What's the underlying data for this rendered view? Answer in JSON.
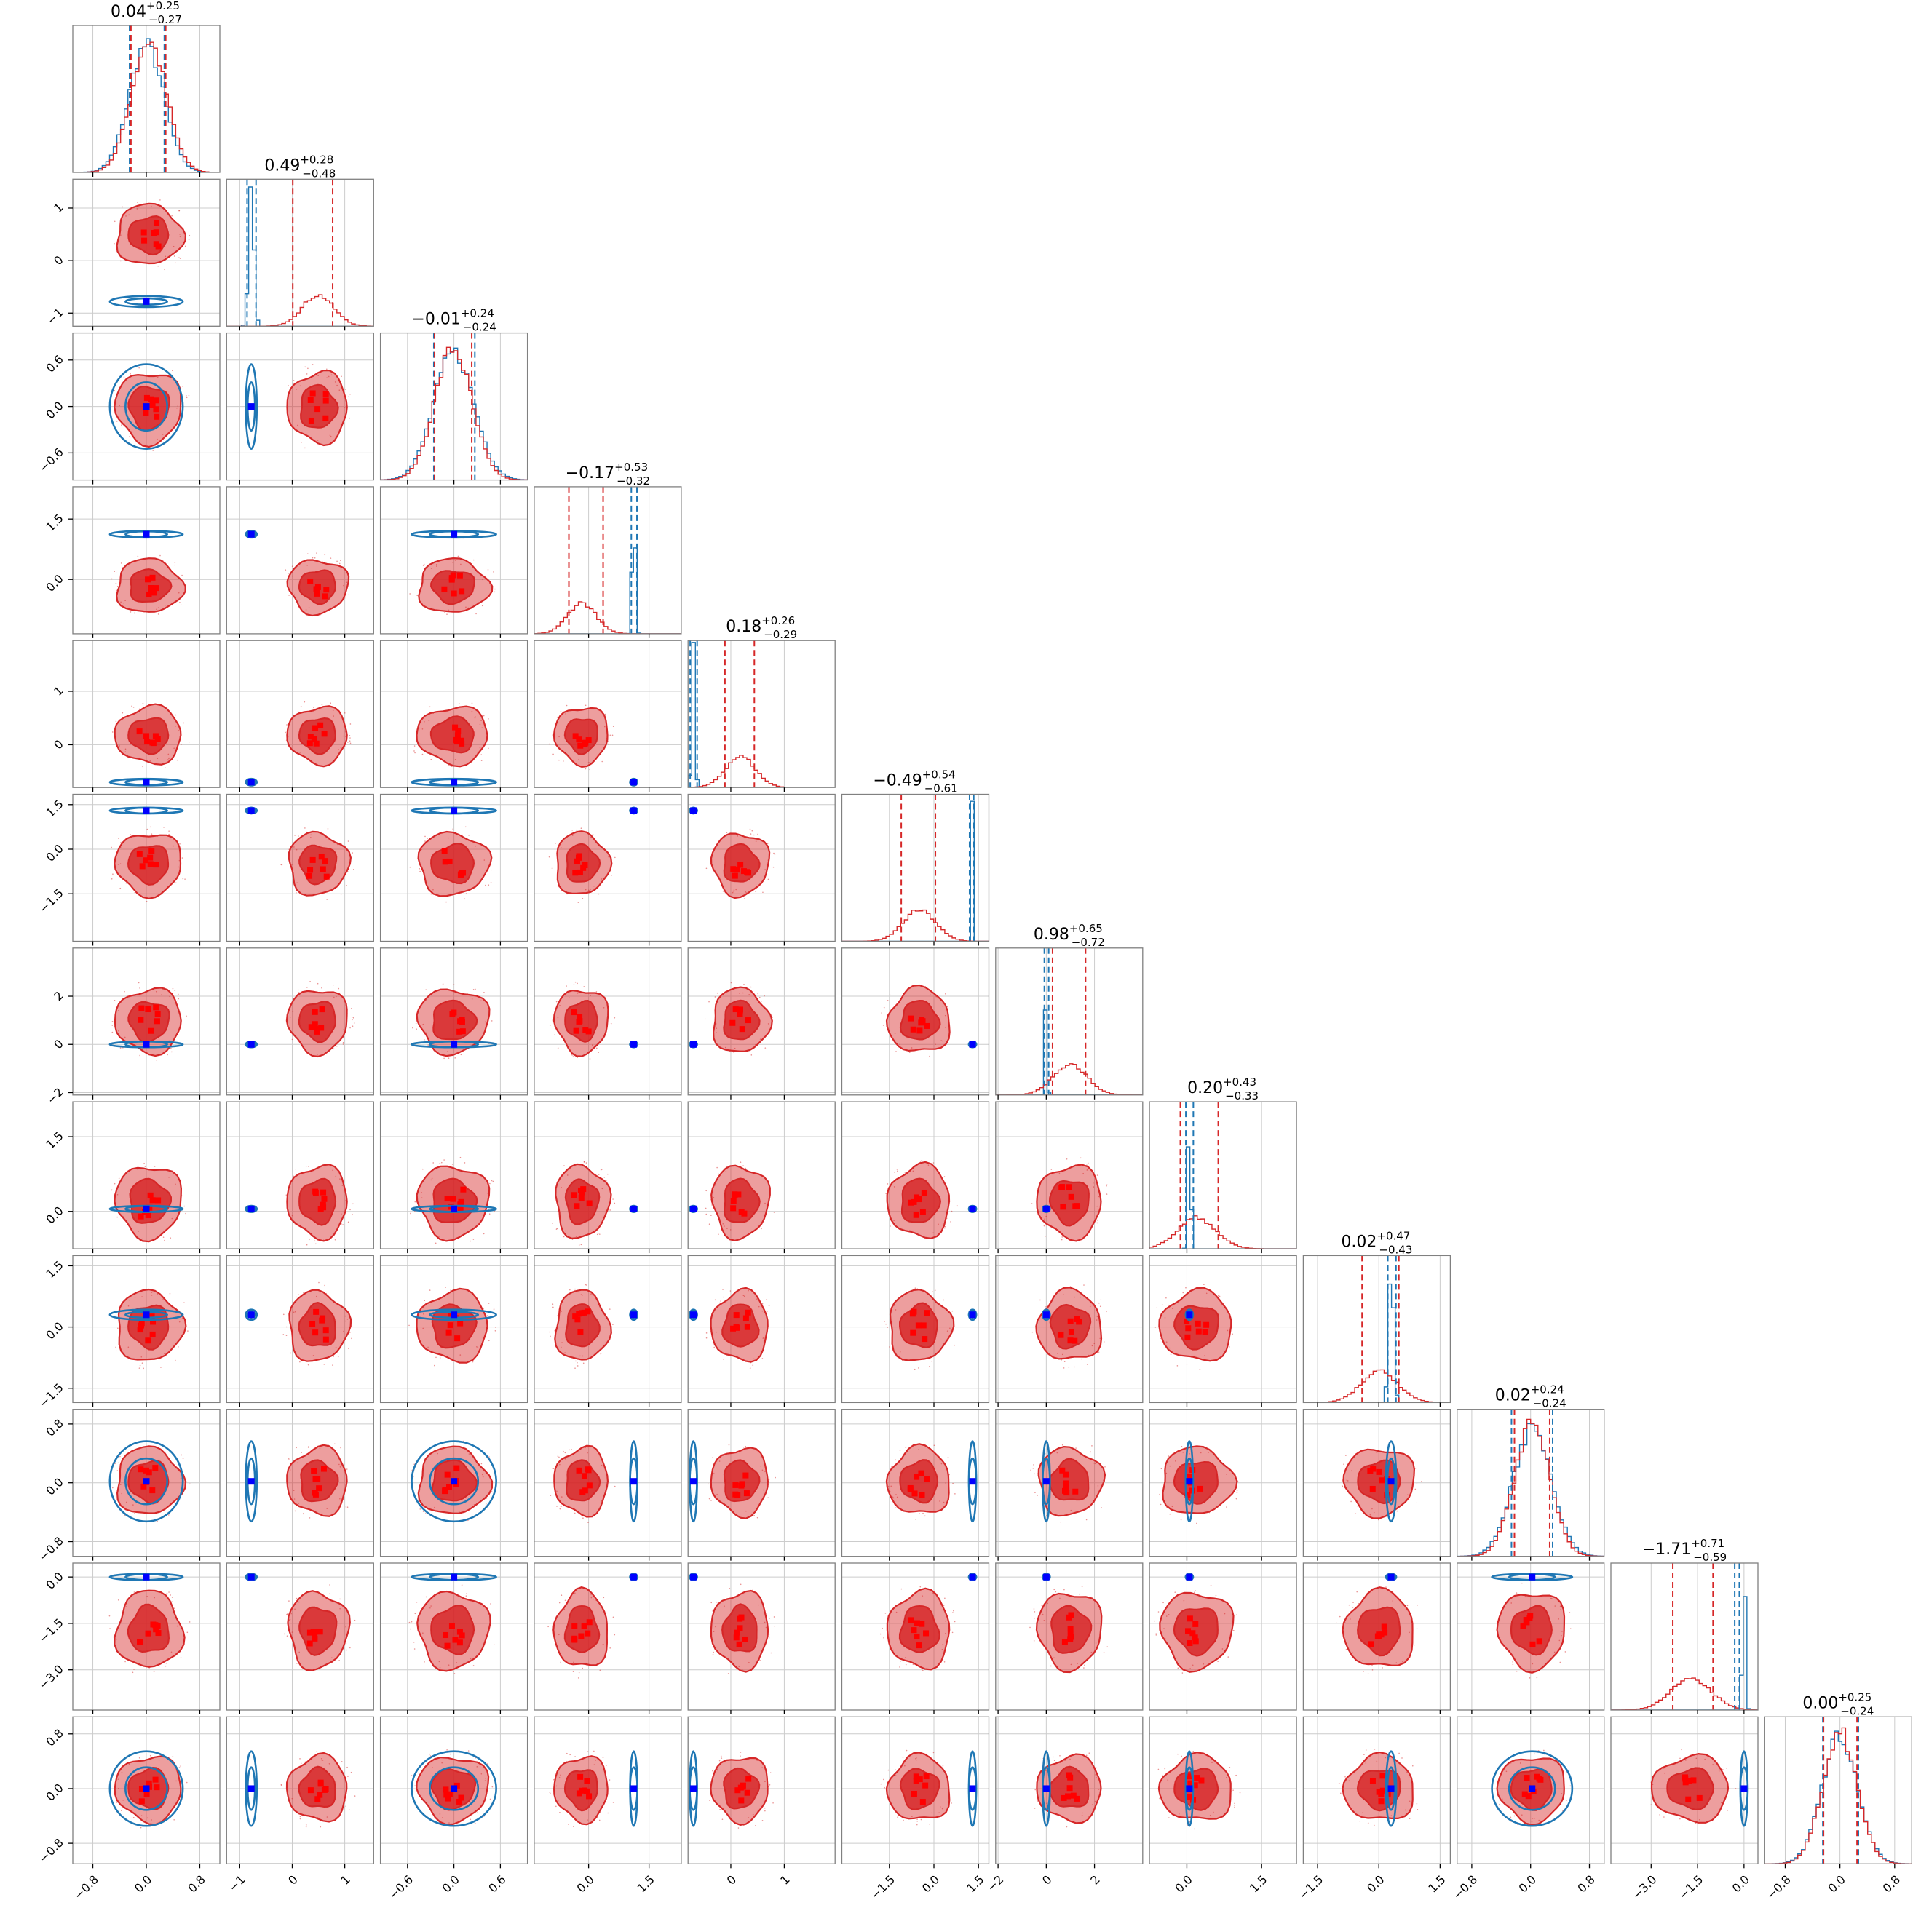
{
  "chart_data": {
    "type": "corner",
    "n_params": 12,
    "colors": {
      "reference": "#1f77b4",
      "posterior": "#d62728",
      "truth_marker": "#0000ff",
      "posterior_marker": "#ff0000",
      "grid": "#cccccc"
    },
    "series": [
      {
        "name": "",
        "color": "#1f77b4"
      },
      {
        "name": "",
        "color": "#d62728"
      }
    ],
    "titles": [
      {
        "median": "0.04",
        "plus": "+0.25",
        "minus": "−0.27"
      },
      {
        "median": "0.49",
        "plus": "+0.28",
        "minus": "−0.48"
      },
      {
        "median": "−0.01",
        "plus": "+0.24",
        "minus": "−0.24"
      },
      {
        "median": "−0.17",
        "plus": "+0.53",
        "minus": "−0.32"
      },
      {
        "median": "0.18",
        "plus": "+0.26",
        "minus": "−0.29"
      },
      {
        "median": "−0.49",
        "plus": "+0.54",
        "minus": "−0.61"
      },
      {
        "median": "0.98",
        "plus": "+0.65",
        "minus": "−0.72"
      },
      {
        "median": "0.20",
        "plus": "+0.43",
        "minus": "−0.33"
      },
      {
        "median": "0.02",
        "plus": "+0.47",
        "minus": "−0.43"
      },
      {
        "median": "0.02",
        "plus": "+0.24",
        "minus": "−0.24"
      },
      {
        "median": "−1.71",
        "plus": "+0.71",
        "minus": "−0.59"
      },
      {
        "median": "0.00",
        "plus": "+0.25",
        "minus": "−0.24"
      }
    ],
    "axes": [
      {
        "range": [
          -1.1,
          1.1
        ],
        "ticks": [
          -0.8,
          0.0,
          0.8
        ],
        "tick_labels": [
          "−0.8",
          "0.0",
          "0.8"
        ]
      },
      {
        "range": [
          -1.25,
          1.55
        ],
        "ticks": [
          -1,
          0,
          1
        ],
        "tick_labels": [
          "−1",
          "0",
          "1"
        ]
      },
      {
        "range": [
          -0.95,
          0.95
        ],
        "ticks": [
          -0.6,
          0.0,
          0.6
        ],
        "tick_labels": [
          "−0.6",
          "0.0",
          "0.6"
        ]
      },
      {
        "range": [
          -1.35,
          2.3
        ],
        "ticks": [
          0.0,
          1.5
        ],
        "tick_labels": [
          "0.0",
          "1.5"
        ]
      },
      {
        "range": [
          -0.8,
          1.95
        ],
        "ticks": [
          0,
          1
        ],
        "tick_labels": [
          "0",
          "1"
        ]
      },
      {
        "range": [
          -3.1,
          1.85
        ],
        "ticks": [
          -1.5,
          0.0,
          1.5
        ],
        "tick_labels": [
          "−1.5",
          "0.0",
          "1.5"
        ]
      },
      {
        "range": [
          -2.1,
          4.0
        ],
        "ticks": [
          -2,
          0,
          2
        ],
        "tick_labels": [
          "−2",
          "0",
          "2"
        ]
      },
      {
        "range": [
          -0.75,
          2.2
        ],
        "ticks": [
          0.0,
          1.5
        ],
        "tick_labels": [
          "0.0",
          "1.5"
        ]
      },
      {
        "range": [
          -1.85,
          1.75
        ],
        "ticks": [
          -1.5,
          0.0,
          1.5
        ],
        "tick_labels": [
          "−1.5",
          "0.0",
          "1.5"
        ]
      },
      {
        "range": [
          -1.0,
          1.0
        ],
        "ticks": [
          -0.8,
          0.0,
          0.8
        ],
        "tick_labels": [
          "−0.8",
          "0.0",
          "0.8"
        ]
      },
      {
        "range": [
          -4.3,
          0.45
        ],
        "ticks": [
          -3.0,
          -1.5,
          0.0
        ],
        "tick_labels": [
          "−3.0",
          "−1.5",
          "0.0"
        ]
      },
      {
        "range": [
          -1.1,
          1.05
        ],
        "ticks": [
          -0.8,
          0.0,
          0.8
        ],
        "tick_labels": [
          "−0.8",
          "0.0",
          "0.8"
        ]
      }
    ],
    "truth_values": [
      0.0,
      -0.78,
      0.0,
      1.12,
      -0.7,
      1.3,
      0.0,
      0.05,
      0.3,
      0.02,
      0.0,
      0.0
    ],
    "posterior_median": [
      0.04,
      0.49,
      -0.01,
      -0.17,
      0.18,
      -0.49,
      0.98,
      0.2,
      0.02,
      0.02,
      -1.71,
      0.0
    ],
    "posterior_low": [
      -0.23,
      0.01,
      -0.25,
      -0.49,
      -0.11,
      -1.1,
      0.26,
      -0.13,
      -0.41,
      -0.22,
      -2.3,
      -0.24
    ],
    "posterior_high": [
      0.29,
      0.77,
      0.23,
      0.36,
      0.44,
      0.05,
      1.63,
      0.63,
      0.49,
      0.26,
      -1.0,
      0.25
    ],
    "reference_low": [
      -0.25,
      -0.86,
      -0.26,
      1.06,
      -0.76,
      1.2,
      -0.08,
      -0.02,
      0.22,
      -0.26,
      -0.3,
      -0.25
    ],
    "reference_high": [
      0.27,
      -0.69,
      0.27,
      1.2,
      -0.63,
      1.34,
      0.1,
      0.13,
      0.42,
      0.3,
      -0.15,
      0.27
    ],
    "reference_sd": [
      0.26,
      0.05,
      0.26,
      0.04,
      0.03,
      0.03,
      0.04,
      0.03,
      0.06,
      0.26,
      0.05,
      0.26
    ],
    "posterior_sd": [
      0.26,
      0.3,
      0.24,
      0.35,
      0.28,
      0.55,
      0.7,
      0.38,
      0.45,
      0.24,
      0.65,
      0.25
    ]
  }
}
